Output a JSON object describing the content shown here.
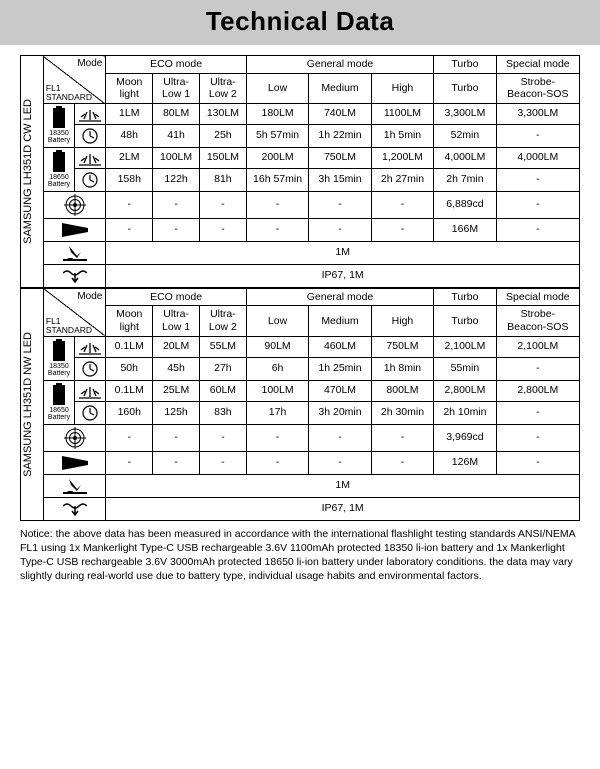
{
  "title": "Technical Data",
  "sections": [
    {
      "sideLabel": "SAMSUNG LH351D CW LED",
      "modeHeader": "Mode",
      "fl1Header": "FL1\nSTANDARD",
      "groups": [
        "ECO mode",
        "General mode",
        "Turbo",
        "Special mode"
      ],
      "cols": [
        "Moon\nlight",
        "Ultra-\nLow 1",
        "Ultra-\nLow 2",
        "Low",
        "Medium",
        "High",
        "Turbo",
        "Strobe-\nBeacon-SOS"
      ],
      "batteries": [
        {
          "label": "18350\nBattery",
          "lumens": [
            "1LM",
            "80LM",
            "130LM",
            "180LM",
            "740LM",
            "1100LM",
            "3,300LM",
            "3,300LM"
          ],
          "runtime": [
            "48h",
            "41h",
            "25h",
            "5h 57min",
            "1h 22min",
            "1h 5min",
            "52min",
            "-"
          ]
        },
        {
          "label": "18650\nBattery",
          "lumens": [
            "2LM",
            "100LM",
            "150LM",
            "200LM",
            "750LM",
            "1,200LM",
            "4,000LM",
            "4,000LM"
          ],
          "runtime": [
            "158h",
            "122h",
            "81h",
            "16h 57min",
            "3h 15min",
            "2h 27min",
            "2h 7min",
            "-"
          ]
        }
      ],
      "candela": [
        "-",
        "-",
        "-",
        "-",
        "-",
        "-",
        "6,889cd",
        "-"
      ],
      "throw": [
        "-",
        "-",
        "-",
        "-",
        "-",
        "-",
        "166M",
        "-"
      ],
      "impact": "1M",
      "water": "IP67, 1M"
    },
    {
      "sideLabel": "SAMSUNG LH351D NW LED",
      "modeHeader": "Mode",
      "fl1Header": "FL1\nSTANDARD",
      "groups": [
        "ECO mode",
        "General mode",
        "Turbo",
        "Special mode"
      ],
      "cols": [
        "Moon\nlight",
        "Ultra-\nLow 1",
        "Ultra-\nLow 2",
        "Low",
        "Medium",
        "High",
        "Turbo",
        "Strobe-\nBeacon-SOS"
      ],
      "batteries": [
        {
          "label": "18350\nBattery",
          "lumens": [
            "0.1LM",
            "20LM",
            "55LM",
            "90LM",
            "460LM",
            "750LM",
            "2,100LM",
            "2,100LM"
          ],
          "runtime": [
            "50h",
            "45h",
            "27h",
            "6h",
            "1h 25min",
            "1h 8min",
            "55min",
            "-"
          ]
        },
        {
          "label": "18650\nBattery",
          "lumens": [
            "0.1LM",
            "25LM",
            "60LM",
            "100LM",
            "470LM",
            "800LM",
            "2,800LM",
            "2,800LM"
          ],
          "runtime": [
            "160h",
            "125h",
            "83h",
            "17h",
            "3h 20min",
            "2h 30min",
            "2h 10min",
            "-"
          ]
        }
      ],
      "candela": [
        "-",
        "-",
        "-",
        "-",
        "-",
        "-",
        "3,969cd",
        "-"
      ],
      "throw": [
        "-",
        "-",
        "-",
        "-",
        "-",
        "-",
        "126M",
        "-"
      ],
      "impact": "1M",
      "water": "IP67, 1M"
    }
  ],
  "notice": "Notice: the above data has been measured in accordance with the international flashlight testing standards ANSI/NEMA FL1 using 1x Mankerlight Type-C USB rechargeable 3.6V 1100mAh protected 18350 li-ion battery and 1x Mankerlight Type-C USB rechargeable 3.6V 3000mAh protected 18650 li-ion battery under laboratory conditions. the data may vary slightly during real-world use due to battery type, individual usage habits and environmental factors."
}
